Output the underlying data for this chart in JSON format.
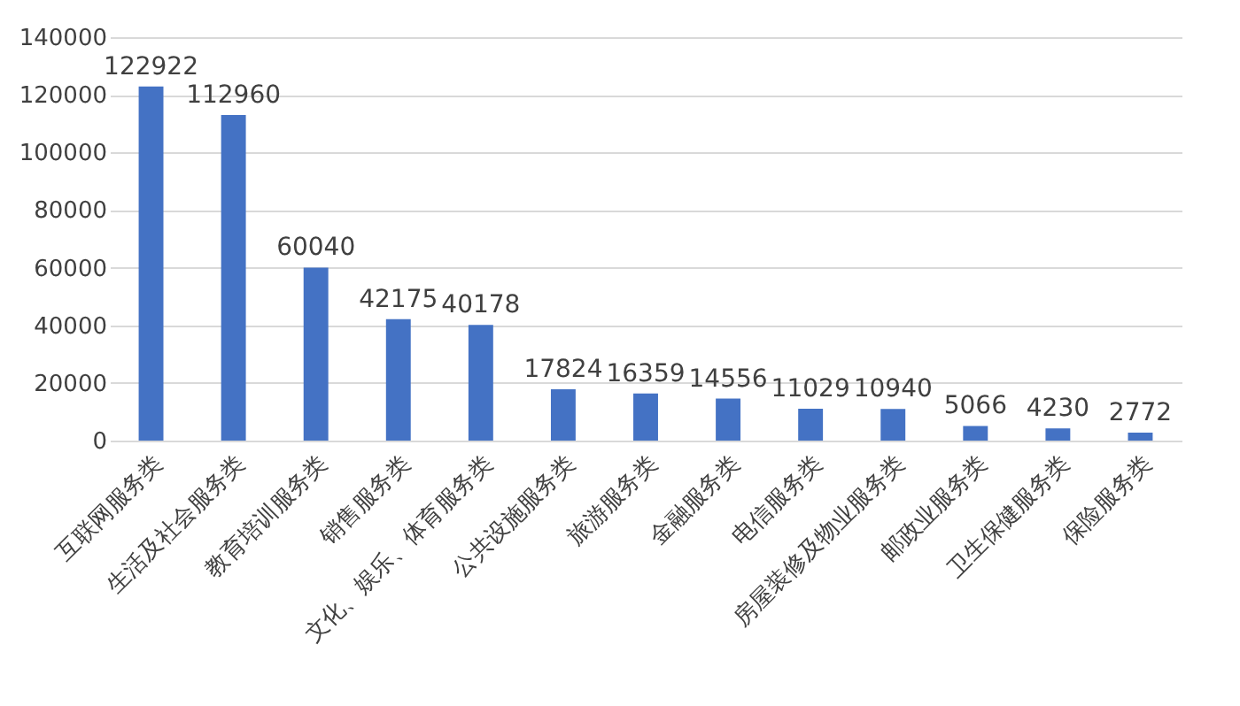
{
  "chart_data": {
    "type": "bar",
    "categories": [
      "互联网服务类",
      "生活及社会服务类",
      "教育培训服务类",
      "销售服务类",
      "文化、娱乐、体育服务类",
      "公共设施服务类",
      "旅游服务类",
      "金融服务类",
      "电信服务类",
      "房屋装修及物业服务类",
      "邮政业服务类",
      "卫生保健服务类",
      "保险服务类"
    ],
    "values": [
      122922,
      112960,
      60040,
      42175,
      40178,
      17824,
      16359,
      14556,
      11029,
      10940,
      5066,
      4230,
      2772
    ],
    "color": "#4472c4",
    "ylim": [
      0,
      140000
    ],
    "yticks": [
      0,
      20000,
      40000,
      60000,
      80000,
      100000,
      120000,
      140000
    ],
    "grid": "y",
    "data_labels": true
  }
}
